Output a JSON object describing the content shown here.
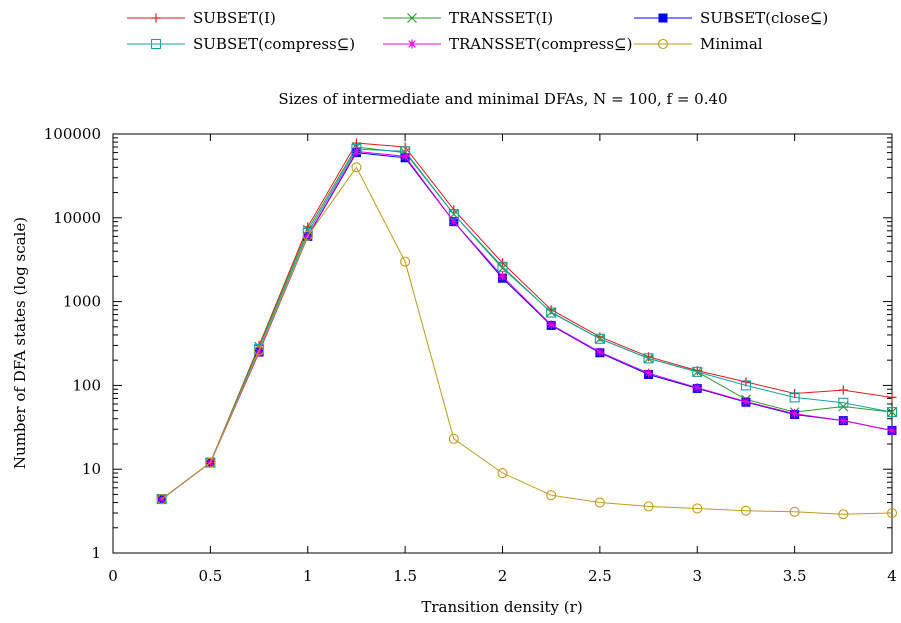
{
  "chart_data": {
    "type": "line",
    "title": "Sizes of intermediate and minimal DFAs, N = 100, f = 0.40",
    "xlabel": "Transition density (r)",
    "ylabel": "Number of DFA states (log scale)",
    "xlim": [
      0,
      4
    ],
    "ylim": [
      1,
      100000
    ],
    "yscale": "log",
    "x_ticks": [
      0,
      0.5,
      1,
      1.5,
      2,
      2.5,
      3,
      3.5,
      4
    ],
    "x_tick_labels": [
      "0",
      "0.5",
      "1",
      "1.5",
      "2",
      "2.5",
      "3",
      "3.5",
      "4"
    ],
    "y_ticks": [
      1,
      10,
      100,
      1000,
      10000,
      100000
    ],
    "y_tick_labels": [
      "1",
      "10",
      "100",
      "1000",
      "10000",
      "100000"
    ],
    "legend_position": "top",
    "x": [
      0.25,
      0.5,
      0.75,
      1.0,
      1.25,
      1.5,
      1.75,
      2.0,
      2.25,
      2.5,
      2.75,
      3.0,
      3.25,
      3.5,
      3.75,
      4.0
    ],
    "series": [
      {
        "name": "SUBSET(I)",
        "color": "#e41a1c",
        "marker": "plus",
        "values": [
          4.4,
          12,
          300,
          7800,
          78000,
          70000,
          12500,
          2900,
          800,
          380,
          220,
          150,
          110,
          80,
          88,
          72
        ]
      },
      {
        "name": "TRANSSET(I)",
        "color": "#2e9a2e",
        "marker": "cross",
        "values": [
          4.4,
          12,
          290,
          7200,
          70000,
          60000,
          11000,
          2500,
          750,
          360,
          210,
          145,
          68,
          48,
          56,
          48
        ]
      },
      {
        "name": "SUBSET(close⊆)",
        "color": "#0000ee",
        "marker": "filled-square",
        "values": [
          4.4,
          12,
          250,
          6000,
          60000,
          52000,
          9000,
          1900,
          520,
          245,
          135,
          92,
          63,
          45,
          38,
          29
        ]
      },
      {
        "name": "SUBSET(compress⊆)",
        "color": "#13a3a3",
        "marker": "open-square",
        "values": [
          4.4,
          12,
          270,
          6600,
          66000,
          62000,
          11000,
          2600,
          740,
          360,
          210,
          145,
          100,
          72,
          62,
          48
        ]
      },
      {
        "name": "TRANSSET(compress⊆)",
        "color": "#e000e0",
        "marker": "star",
        "values": [
          4.4,
          12,
          250,
          6100,
          62000,
          54000,
          9000,
          2000,
          530,
          250,
          140,
          94,
          64,
          46,
          38,
          29
        ]
      },
      {
        "name": "Minimal",
        "color": "#c49a18",
        "marker": "open-circle",
        "values": [
          4.4,
          12,
          260,
          6100,
          40000,
          3000,
          23,
          9,
          4.9,
          4.0,
          3.6,
          3.4,
          3.2,
          3.1,
          2.9,
          3.0
        ]
      }
    ]
  }
}
